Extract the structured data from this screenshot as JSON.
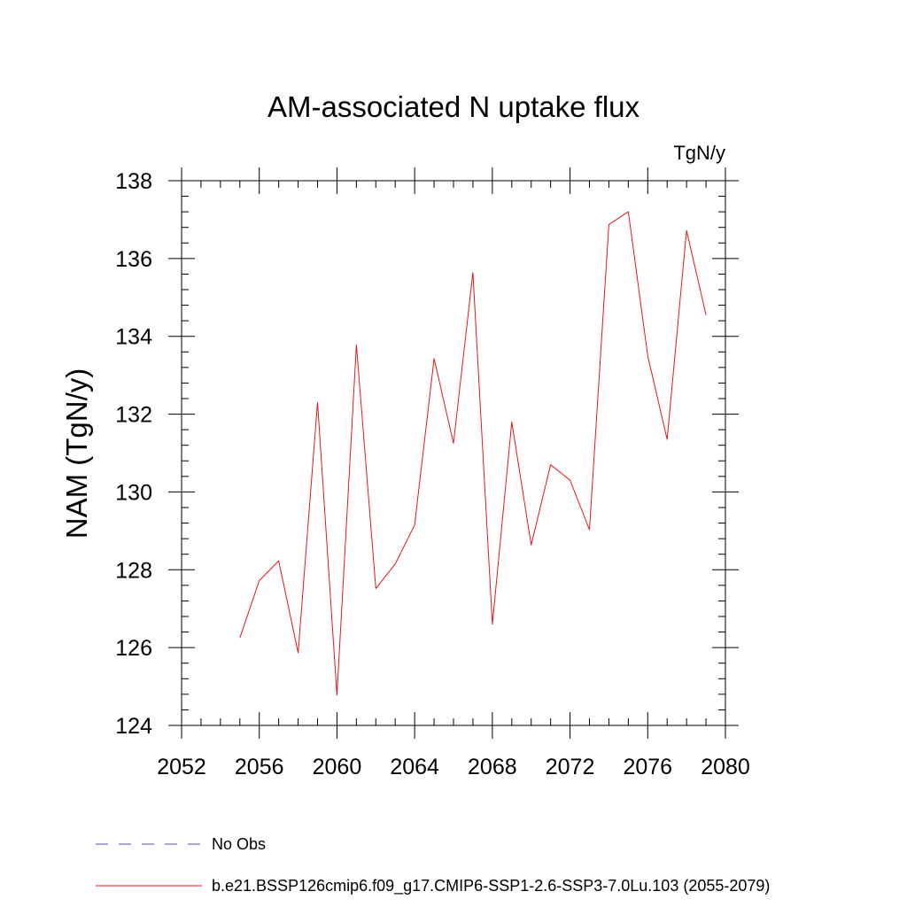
{
  "chart_data": {
    "type": "line",
    "title": "AM-associated N uptake flux",
    "units_label": "TgN/y",
    "ylabel": "NAM  (TgN/y)",
    "xlabel": "",
    "xlim": [
      2052,
      2080
    ],
    "ylim": [
      124,
      138
    ],
    "x_major_ticks": [
      2052,
      2056,
      2060,
      2064,
      2068,
      2072,
      2076,
      2080
    ],
    "x_minor_step": 1,
    "y_major_ticks": [
      124,
      126,
      128,
      130,
      132,
      134,
      136,
      138
    ],
    "y_minor_step": 0.4,
    "grid": false,
    "legend_position": "bottom",
    "series": [
      {
        "name": "No Obs",
        "style": "dashed",
        "color": "#5a4fa3",
        "x": [],
        "values": []
      },
      {
        "name": "b.e21.BSSP126cmip6.f09_g17.CMIP6-SSP1-2.6-SSP3-7.0Lu.103 (2055-2079)",
        "style": "solid",
        "color": "#e8141c",
        "x": [
          2055,
          2056,
          2057,
          2058,
          2059,
          2060,
          2061,
          2062,
          2063,
          2064,
          2065,
          2066,
          2067,
          2068,
          2069,
          2070,
          2071,
          2072,
          2073,
          2074,
          2075,
          2076,
          2077,
          2078,
          2079
        ],
        "values": [
          126.25,
          127.72,
          128.23,
          125.87,
          132.3,
          124.78,
          133.78,
          127.52,
          128.15,
          129.15,
          133.43,
          131.25,
          135.64,
          126.6,
          131.8,
          128.64,
          130.7,
          130.3,
          129.03,
          136.87,
          137.2,
          133.5,
          131.35,
          136.72,
          134.55
        ]
      }
    ]
  }
}
